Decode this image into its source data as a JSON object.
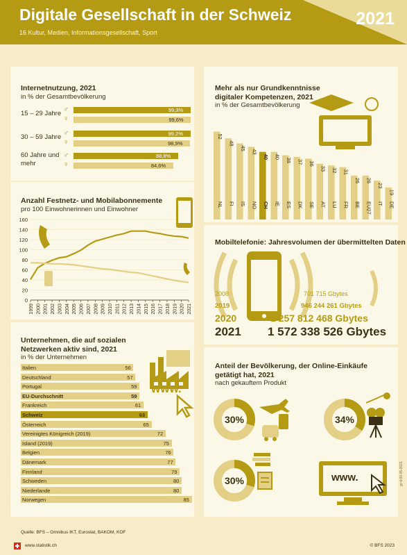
{
  "header": {
    "title": "Digitale Gesellschaft in der Schweiz",
    "subtitle": "16 Kultur, Medien, Informationsgesellschaft, Sport",
    "year": "2021"
  },
  "colors": {
    "gold": "#b59a14",
    "light": "#e3cf86",
    "dark": "#3a3116",
    "bg": "#f6ecc8",
    "panel": "#fcf8e7"
  },
  "internet": {
    "title": "Internetnutzung, 2021",
    "subtitle": "in % der Gesamtbevölkerung",
    "groups": [
      {
        "label": "15 – 29 Jahre",
        "values": [
          "99,3%",
          "99,6%"
        ]
      },
      {
        "label": "30 – 59 Jahre",
        "values": [
          "99,2%",
          "98,9%"
        ]
      },
      {
        "label": "60 Jahre und mehr",
        "values": [
          "88,8%",
          "84,6%"
        ]
      }
    ]
  },
  "abos": {
    "title": "Anzahl Festnetz- und Mobilabonnemente",
    "subtitle": "pro 100 Einwohnerinnen und Einwohner"
  },
  "kompetenzen": {
    "title": "Mehr als nur Grundkenntnisse digitaler Kompetenzen, 2021",
    "subtitle": "in % der Gesamtbevölkerung"
  },
  "mobil": {
    "title": "Mobiltelefonie: Jahresvolumen der übermittelten Daten",
    "rows": [
      {
        "year": "2008",
        "value": "701 715 Gbytes"
      },
      {
        "year": "2019",
        "value": "946 244 261 Gbytes"
      },
      {
        "year": "2020",
        "value": "1 257 812 468 Gbytes"
      },
      {
        "year": "2021",
        "value": "1 572 338 526 Gbytes"
      }
    ]
  },
  "social": {
    "title": "Unternehmen, die auf sozialen Netzwerken aktiv sind, 2021",
    "subtitle": "in % der Unternehmen",
    "www": "www."
  },
  "shopping": {
    "title": "Anteil der Bevölkerung, der Online-Einkäufe getätigt hat, 2021",
    "subtitle": "nach gekauftem Produkt",
    "donuts": [
      {
        "label": "30%",
        "value": 30
      },
      {
        "label": "34%",
        "value": 34
      },
      {
        "label": "30%",
        "value": 30
      }
    ],
    "www": "www."
  },
  "footer": {
    "source": "Quelle: BFS – Omnibus IKT, Eurostat, BAKOM, KOF",
    "website": "www.statistik.ch",
    "copyright": "© BFS 2023",
    "side": "gr-d-00.05-2021"
  },
  "chart_data": [
    {
      "type": "bar",
      "title": "Internetnutzung, 2021",
      "categories": [
        "15 – 29 Jahre",
        "30 – 59 Jahre",
        "60 Jahre und mehr"
      ],
      "series": [
        {
          "name": "♂",
          "values": [
            99.3,
            99.2,
            88.8
          ]
        },
        {
          "name": "♀",
          "values": [
            99.6,
            98.9,
            84.6
          ]
        }
      ],
      "xlim": [
        0,
        100
      ]
    },
    {
      "type": "line",
      "title": "Anzahl Festnetz- und Mobilabonnemente",
      "x": [
        "1999",
        "2000",
        "2001",
        "2002",
        "2003",
        "2004",
        "2005",
        "2006",
        "2007",
        "2008",
        "2009",
        "2010",
        "2011",
        "2012",
        "2013",
        "2014",
        "2015",
        "2016",
        "2017",
        "2018",
        "2019",
        "2020",
        "2021"
      ],
      "series": [
        {
          "icon": "mobile",
          "values": [
            41,
            64,
            73,
            79,
            84,
            86,
            92,
            99,
            109,
            117,
            121,
            125,
            129,
            132,
            137,
            137,
            137,
            134,
            132,
            129,
            127,
            126,
            123
          ]
        },
        {
          "icon": "landline",
          "values": [
            74,
            74,
            73,
            72,
            72,
            71,
            70,
            68,
            66,
            64,
            62,
            61,
            59,
            57,
            55,
            54,
            51,
            48,
            45,
            42,
            39,
            37,
            35
          ]
        }
      ],
      "ylim": [
        0,
        160
      ],
      "yticks": [
        0,
        20,
        40,
        60,
        80,
        100,
        120,
        140,
        160
      ]
    },
    {
      "type": "bar",
      "title": "Mehr als nur Grundkenntnisse digitaler Kompetenzen, 2021",
      "categories": [
        "NL",
        "FI",
        "IS",
        "NO",
        "CH",
        "IE",
        "ES",
        "DK",
        "SE",
        "AT",
        "LU",
        "FR",
        "BE",
        "EU27",
        "IT",
        "DE"
      ],
      "values": [
        52,
        48,
        45,
        43,
        40,
        40,
        38,
        37,
        36,
        33,
        32,
        31,
        26,
        26,
        23,
        19
      ],
      "highlight": "CH",
      "ylim": [
        0,
        60
      ]
    },
    {
      "type": "bar",
      "title": "Unternehmen, die auf sozialen Netzwerken aktiv sind, 2021",
      "categories": [
        "Italien",
        "Deutschland",
        "Portugal",
        "EU-Durchschnitt",
        "Frankreich",
        "Schweiz",
        "Österreich",
        "Vereinigtes Königreich (2019)",
        "Island (2019)",
        "Belgien",
        "Dänemark",
        "Finnland",
        "Schweden",
        "Niederlande",
        "Norwegen"
      ],
      "values": [
        56,
        57,
        59,
        59,
        61,
        63,
        65,
        72,
        75,
        76,
        77,
        79,
        80,
        80,
        85
      ],
      "bold": [
        "EU-Durchschnitt",
        "Schweiz"
      ],
      "xlim": [
        0,
        90
      ]
    }
  ]
}
